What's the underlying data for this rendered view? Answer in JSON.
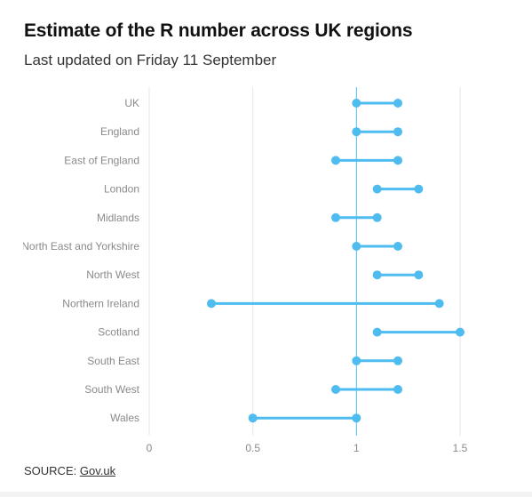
{
  "header": {
    "title": "Estimate of the R number across UK regions",
    "subtitle": "Last updated on Friday 11 September"
  },
  "footer": {
    "source_prefix": "SOURCE:",
    "source_link": "Gov.uk"
  },
  "colors": {
    "series": "#4fbcf0",
    "reference_line": "#4fbcf0",
    "grid": "#e6e6e6",
    "label": "#8a8a8a"
  },
  "chart_data": {
    "type": "dumbbell",
    "title": "Estimate of the R number across UK regions",
    "subtitle": "Last updated on Friday 11 September",
    "xlabel": "",
    "ylabel": "",
    "xlim": [
      0,
      1.8
    ],
    "xticks": [
      "0",
      "0.5",
      "1",
      "1.5"
    ],
    "xtick_values": [
      0,
      0.5,
      1,
      1.5
    ],
    "reference_line": 1,
    "grid": true,
    "categories": [
      "UK",
      "England",
      "East of England",
      "London",
      "Midlands",
      "North East and Yorkshire",
      "North West",
      "Northern Ireland",
      "Scotland",
      "South East",
      "South West",
      "Wales"
    ],
    "low": [
      1.0,
      1.0,
      0.9,
      1.1,
      0.9,
      1.0,
      1.1,
      0.3,
      1.1,
      1.0,
      0.9,
      0.5
    ],
    "high": [
      1.2,
      1.2,
      1.2,
      1.3,
      1.1,
      1.2,
      1.3,
      1.4,
      1.5,
      1.2,
      1.2,
      1.0
    ]
  }
}
